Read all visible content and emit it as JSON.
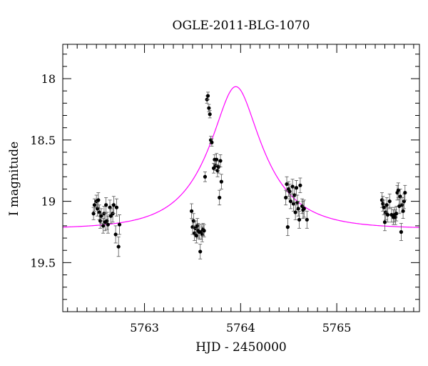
{
  "chart_data": {
    "type": "scatter",
    "title": "OGLE-2011-BLG-1070",
    "xlabel": "HJD - 2450000",
    "ylabel": "I magnitude",
    "xlim": [
      5762.15,
      5765.86
    ],
    "ylim": [
      19.9,
      17.72
    ],
    "y_inverted": true,
    "grid": false,
    "x_ticks": [
      5763,
      5764,
      5765
    ],
    "y_ticks": [
      18,
      18.5,
      19,
      19.5
    ],
    "x_tick_labels": [
      "5763",
      "5764",
      "5765"
    ],
    "y_tick_labels": [
      "18",
      "18.5",
      "19",
      "19.5"
    ],
    "model_color": "#ff00ff",
    "model": {
      "t0": 5763.95,
      "u0": 0.36,
      "tE": 0.56,
      "baseline": 19.225
    },
    "series": [
      {
        "marker_color": "#000000",
        "points": [
          [
            5762.47,
            19.1,
            0.05
          ],
          [
            5762.48,
            19.03,
            0.05
          ],
          [
            5762.5,
            19.0,
            0.05
          ],
          [
            5762.51,
            19.06,
            0.06
          ],
          [
            5762.52,
            18.99,
            0.06
          ],
          [
            5762.53,
            19.09,
            0.06
          ],
          [
            5762.54,
            19.16,
            0.06
          ],
          [
            5762.55,
            19.12,
            0.06
          ],
          [
            5762.57,
            19.2,
            0.06
          ],
          [
            5762.58,
            19.1,
            0.06
          ],
          [
            5762.59,
            19.17,
            0.07
          ],
          [
            5762.6,
            19.03,
            0.06
          ],
          [
            5762.61,
            19.16,
            0.07
          ],
          [
            5762.62,
            19.19,
            0.07
          ],
          [
            5762.64,
            19.05,
            0.06
          ],
          [
            5762.65,
            19.12,
            0.06
          ],
          [
            5762.67,
            19.1,
            0.07
          ],
          [
            5762.68,
            19.03,
            0.07
          ],
          [
            5762.7,
            19.27,
            0.07
          ],
          [
            5762.71,
            19.05,
            0.07
          ],
          [
            5762.73,
            19.37,
            0.08
          ],
          [
            5762.74,
            19.19,
            0.08
          ],
          [
            5763.49,
            19.08,
            0.06
          ],
          [
            5763.5,
            19.21,
            0.06
          ],
          [
            5763.51,
            19.16,
            0.06
          ],
          [
            5763.52,
            19.26,
            0.06
          ],
          [
            5763.53,
            19.22,
            0.06
          ],
          [
            5763.54,
            19.28,
            0.06
          ],
          [
            5763.55,
            19.2,
            0.06
          ],
          [
            5763.56,
            19.24,
            0.06
          ],
          [
            5763.57,
            19.25,
            0.06
          ],
          [
            5763.58,
            19.41,
            0.06
          ],
          [
            5763.59,
            19.25,
            0.06
          ],
          [
            5763.6,
            19.27,
            0.06
          ],
          [
            5763.61,
            19.23,
            0.05
          ],
          [
            5763.62,
            19.24,
            0.05
          ],
          [
            5763.63,
            18.8,
            0.04
          ],
          [
            5763.65,
            18.17,
            0.03
          ],
          [
            5763.66,
            18.14,
            0.03
          ],
          [
            5763.67,
            18.24,
            0.03
          ],
          [
            5763.68,
            18.29,
            0.03
          ],
          [
            5763.69,
            18.5,
            0.03
          ],
          [
            5763.7,
            18.52,
            0.03
          ],
          [
            5763.72,
            18.73,
            0.04
          ],
          [
            5763.73,
            18.66,
            0.04
          ],
          [
            5763.74,
            18.71,
            0.04
          ],
          [
            5763.75,
            18.66,
            0.05
          ],
          [
            5763.76,
            18.75,
            0.05
          ],
          [
            5763.77,
            18.72,
            0.05
          ],
          [
            5763.78,
            18.97,
            0.06
          ],
          [
            5763.79,
            18.67,
            0.05
          ],
          [
            5763.8,
            18.84,
            0.06
          ],
          [
            5764.47,
            18.97,
            0.06
          ],
          [
            5764.48,
            18.86,
            0.06
          ],
          [
            5764.49,
            19.21,
            0.07
          ],
          [
            5764.5,
            18.9,
            0.06
          ],
          [
            5764.51,
            18.92,
            0.06
          ],
          [
            5764.52,
            19.0,
            0.06
          ],
          [
            5764.54,
            18.88,
            0.06
          ],
          [
            5764.55,
            19.02,
            0.06
          ],
          [
            5764.56,
            18.95,
            0.06
          ],
          [
            5764.57,
            19.09,
            0.06
          ],
          [
            5764.58,
            18.89,
            0.06
          ],
          [
            5764.59,
            19.01,
            0.06
          ],
          [
            5764.6,
            19.06,
            0.06
          ],
          [
            5764.61,
            19.15,
            0.07
          ],
          [
            5764.62,
            18.87,
            0.06
          ],
          [
            5764.64,
            19.04,
            0.06
          ],
          [
            5764.65,
            19.07,
            0.07
          ],
          [
            5764.66,
            19.06,
            0.07
          ],
          [
            5764.69,
            19.15,
            0.07
          ],
          [
            5765.47,
            18.99,
            0.06
          ],
          [
            5765.48,
            19.02,
            0.06
          ],
          [
            5765.49,
            19.05,
            0.06
          ],
          [
            5765.5,
            19.17,
            0.07
          ],
          [
            5765.51,
            19.09,
            0.06
          ],
          [
            5765.52,
            19.03,
            0.06
          ],
          [
            5765.53,
            19.11,
            0.06
          ],
          [
            5765.55,
            19.0,
            0.06
          ],
          [
            5765.57,
            19.11,
            0.06
          ],
          [
            5765.59,
            19.13,
            0.06
          ],
          [
            5765.6,
            19.11,
            0.06
          ],
          [
            5765.61,
            19.13,
            0.06
          ],
          [
            5765.62,
            19.1,
            0.06
          ],
          [
            5765.63,
            18.93,
            0.06
          ],
          [
            5765.64,
            18.91,
            0.06
          ],
          [
            5765.65,
            19.04,
            0.06
          ],
          [
            5765.66,
            18.96,
            0.06
          ],
          [
            5765.67,
            19.25,
            0.07
          ],
          [
            5765.68,
            19.03,
            0.06
          ],
          [
            5765.69,
            19.08,
            0.06
          ],
          [
            5765.7,
            19.0,
            0.06
          ],
          [
            5765.71,
            18.93,
            0.06
          ]
        ]
      }
    ]
  }
}
